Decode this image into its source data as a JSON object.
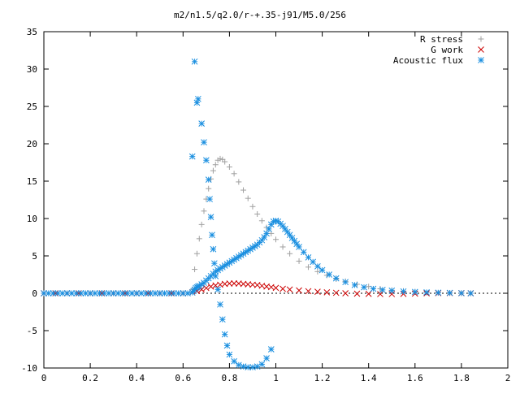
{
  "chart_data": {
    "type": "scatter",
    "title": "m2/n1.5/q2.0/r-+.35-j91/M5.0/256",
    "xlabel": "",
    "ylabel": "",
    "xlim": [
      0,
      2
    ],
    "ylim": [
      -10,
      35
    ],
    "xticks": [
      0,
      0.2,
      0.4,
      0.6,
      0.8,
      1,
      1.2,
      1.4,
      1.6,
      1.8,
      2
    ],
    "xtick_labels": [
      "0",
      "0.2",
      "0.4",
      "0.6",
      "0.8",
      "1",
      "1.2",
      "1.4",
      "1.6",
      "1.8",
      "2"
    ],
    "yticks": [
      -10,
      -5,
      0,
      5,
      10,
      15,
      20,
      25,
      30,
      35
    ],
    "ytick_labels": [
      "-10",
      "-5",
      "0",
      "5",
      "10",
      "15",
      "20",
      "25",
      "30",
      "35"
    ],
    "grid": false,
    "legend_position": "top-right",
    "series": [
      {
        "name": "R stress",
        "marker": "plus",
        "color": "#a0a0a0",
        "x": [
          0.0,
          0.05,
          0.1,
          0.15,
          0.2,
          0.25,
          0.3,
          0.35,
          0.4,
          0.45,
          0.5,
          0.55,
          0.6,
          0.64,
          0.65,
          0.66,
          0.67,
          0.68,
          0.69,
          0.7,
          0.71,
          0.72,
          0.73,
          0.74,
          0.75,
          0.76,
          0.77,
          0.78,
          0.8,
          0.82,
          0.84,
          0.86,
          0.88,
          0.9,
          0.92,
          0.94,
          0.96,
          0.98,
          1.0,
          1.03,
          1.06,
          1.1,
          1.14,
          1.18,
          1.22,
          1.26,
          1.3,
          1.35,
          1.4,
          1.45,
          1.5,
          1.55,
          1.6,
          1.65,
          1.7,
          1.75,
          1.8,
          1.84
        ],
        "y": [
          0,
          0,
          0,
          0,
          0,
          0,
          0,
          0,
          0,
          0,
          0,
          0,
          0,
          0.5,
          3.2,
          5.3,
          7.3,
          9.2,
          11.0,
          12.6,
          14.0,
          15.3,
          16.4,
          17.2,
          17.8,
          18.0,
          17.9,
          17.6,
          16.9,
          16.0,
          14.9,
          13.8,
          12.7,
          11.6,
          10.6,
          9.7,
          8.8,
          8.0,
          7.2,
          6.2,
          5.3,
          4.3,
          3.5,
          2.9,
          2.4,
          1.9,
          1.6,
          1.2,
          0.9,
          0.6,
          0.4,
          0.3,
          0.2,
          0.1,
          0.05,
          0.02,
          0.01,
          0.0
        ]
      },
      {
        "name": "G work",
        "marker": "cross",
        "color": "#cc0000",
        "x": [
          0.0,
          0.05,
          0.1,
          0.15,
          0.2,
          0.25,
          0.3,
          0.35,
          0.4,
          0.45,
          0.5,
          0.55,
          0.6,
          0.64,
          0.66,
          0.68,
          0.7,
          0.72,
          0.74,
          0.76,
          0.78,
          0.8,
          0.82,
          0.84,
          0.86,
          0.88,
          0.9,
          0.92,
          0.94,
          0.96,
          0.98,
          1.0,
          1.03,
          1.06,
          1.1,
          1.14,
          1.18,
          1.22,
          1.26,
          1.3,
          1.35,
          1.4,
          1.45,
          1.5,
          1.55,
          1.6,
          1.65,
          1.7,
          1.75,
          1.8,
          1.84
        ],
        "y": [
          0,
          0,
          0,
          0,
          0,
          0,
          0,
          0,
          0,
          0,
          0,
          0,
          0,
          0.1,
          0.3,
          0.5,
          0.7,
          0.9,
          1.05,
          1.15,
          1.25,
          1.3,
          1.32,
          1.3,
          1.25,
          1.2,
          1.15,
          1.1,
          1.0,
          0.9,
          0.82,
          0.72,
          0.6,
          0.5,
          0.38,
          0.28,
          0.2,
          0.12,
          0.06,
          0.0,
          -0.05,
          -0.08,
          -0.1,
          -0.1,
          -0.08,
          -0.04,
          0.0,
          0.02,
          0.02,
          0.01,
          0.0
        ]
      },
      {
        "name": "Acoustic flux",
        "marker": "star",
        "color": "#1a8fe0",
        "x": [
          0.0,
          0.02,
          0.04,
          0.06,
          0.08,
          0.1,
          0.12,
          0.14,
          0.16,
          0.18,
          0.2,
          0.22,
          0.24,
          0.26,
          0.28,
          0.3,
          0.32,
          0.34,
          0.36,
          0.38,
          0.4,
          0.42,
          0.44,
          0.46,
          0.48,
          0.5,
          0.52,
          0.54,
          0.56,
          0.58,
          0.6,
          0.62,
          0.64,
          0.645,
          0.65,
          0.655,
          0.66,
          0.665,
          0.67,
          0.68,
          0.69,
          0.7,
          0.71,
          0.72,
          0.73,
          0.74,
          0.75,
          0.76,
          0.77,
          0.78,
          0.79,
          0.8,
          0.81,
          0.82,
          0.83,
          0.84,
          0.85,
          0.86,
          0.87,
          0.88,
          0.89,
          0.9,
          0.91,
          0.92,
          0.93,
          0.94,
          0.95,
          0.96,
          0.97,
          0.98,
          0.99,
          1.0,
          1.01,
          1.02,
          1.03,
          1.04,
          1.05,
          1.06,
          1.07,
          1.08,
          1.09,
          1.1,
          1.12,
          1.14,
          1.16,
          1.18,
          1.2,
          1.23,
          1.26,
          1.3,
          1.34,
          1.38,
          1.42,
          1.46,
          1.5,
          1.55,
          1.6,
          1.65,
          1.7,
          1.75,
          1.8,
          1.84,
          0.64,
          0.65,
          0.66,
          0.665,
          0.68,
          0.69,
          0.7,
          0.71,
          0.715,
          0.72,
          0.725,
          0.73,
          0.735,
          0.74,
          0.75,
          0.76,
          0.77,
          0.78,
          0.79,
          0.8,
          0.82,
          0.84,
          0.86,
          0.88,
          0.9,
          0.92,
          0.94,
          0.96,
          0.98
        ],
        "y": [
          0,
          0,
          0,
          0,
          0,
          0,
          0,
          0,
          0,
          0,
          0,
          0,
          0,
          0,
          0,
          0,
          0,
          0,
          0,
          0,
          0,
          0,
          0,
          0,
          0,
          0,
          0,
          0,
          0,
          0,
          0,
          0,
          0.1,
          0.3,
          0.5,
          0.7,
          0.8,
          0.9,
          1.0,
          1.2,
          1.4,
          1.7,
          2.0,
          2.3,
          2.6,
          2.9,
          3.1,
          3.3,
          3.5,
          3.7,
          3.9,
          4.1,
          4.3,
          4.5,
          4.7,
          4.9,
          5.1,
          5.3,
          5.5,
          5.7,
          5.9,
          6.1,
          6.3,
          6.5,
          6.8,
          7.1,
          7.5,
          8.0,
          8.6,
          9.2,
          9.6,
          9.7,
          9.6,
          9.3,
          9.0,
          8.6,
          8.2,
          7.8,
          7.4,
          7.0,
          6.6,
          6.2,
          5.5,
          4.8,
          4.2,
          3.6,
          3.1,
          2.5,
          2.0,
          1.5,
          1.1,
          0.8,
          0.6,
          0.45,
          0.35,
          0.25,
          0.18,
          0.12,
          0.08,
          0.05,
          0.02,
          0.0,
          18.3,
          31.0,
          25.5,
          26.0,
          22.7,
          20.2,
          17.8,
          15.2,
          12.6,
          10.2,
          7.8,
          5.9,
          4.0,
          2.3,
          0.5,
          -1.5,
          -3.5,
          -5.5,
          -7.0,
          -8.2,
          -9.1,
          -9.6,
          -9.8,
          -9.9,
          -9.9,
          -9.8,
          -9.5,
          -8.7,
          -7.5
        ]
      }
    ]
  }
}
